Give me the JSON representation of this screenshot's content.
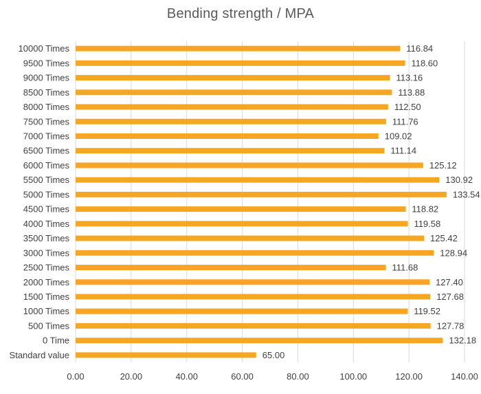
{
  "chart_data": {
    "type": "bar",
    "orientation": "horizontal",
    "title": "Bending strength / MPA",
    "xlabel": "",
    "ylabel": "",
    "categories": [
      "10000 Times",
      "9500 Times",
      "9000 Times",
      "8500 Times",
      "8000 Times",
      "7500 Times",
      "7000 Times",
      "6500 Times",
      "6000 Times",
      "5500 Times",
      "5000 Times",
      "4500 Times",
      "4000 Times",
      "3500 Times",
      "3000 Times",
      "2500 Times",
      "2000 Times",
      "1500 Times",
      "1000 Times",
      "500 Times",
      "0 Time",
      "Standard value"
    ],
    "values": [
      116.84,
      118.6,
      113.16,
      113.88,
      112.5,
      111.76,
      109.02,
      111.14,
      125.12,
      130.92,
      133.54,
      118.82,
      119.58,
      125.42,
      128.94,
      111.68,
      127.4,
      127.68,
      119.52,
      127.78,
      132.18,
      65.0
    ],
    "value_labels": [
      "116.84",
      "118.60",
      "113.16",
      "113.88",
      "112.50",
      "111.76",
      "109.02",
      "111.14",
      "125.12",
      "130.92",
      "133.54",
      "118.82",
      "119.58",
      "125.42",
      "128.94",
      "111.68",
      "127.40",
      "127.68",
      "119.52",
      "127.78",
      "132.18",
      "65.00"
    ],
    "xlim": [
      0,
      140
    ],
    "xticks": [
      0,
      20,
      40,
      60,
      80,
      100,
      120,
      140
    ],
    "xtick_labels": [
      "0.00",
      "20.00",
      "40.00",
      "60.00",
      "80.00",
      "100.00",
      "120.00",
      "140.00"
    ],
    "grid": true,
    "legend": "none",
    "colors": {
      "bar": "#F5A623",
      "grid": "#D9D9D9",
      "text": "#404040",
      "title": "#595959"
    }
  }
}
